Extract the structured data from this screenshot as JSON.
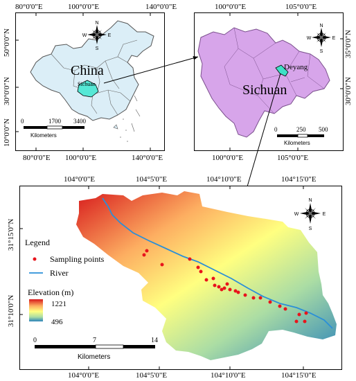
{
  "china_panel": {
    "top_ticks": [
      "80°0'0\"E",
      "100°0'0\"E",
      "140°0'0\"E"
    ],
    "bottom_ticks": [
      "80°0'0\"E",
      "100°0'0\"E",
      "140°0'0\"E"
    ],
    "left_ticks": [
      "50°0'0\"N",
      "30°0'0\"N",
      "10°0'0\"N"
    ],
    "country_label": "China",
    "province_label": "Sichuan",
    "scale_numbers": [
      "0",
      "1700",
      "3400"
    ],
    "scale_unit": "Kilometers",
    "colors": {
      "land": "#dbeef7",
      "highlight": "#56e8d6",
      "border": "#555555"
    }
  },
  "sichuan_panel": {
    "top_ticks": [
      "100°0'0\"E",
      "105°0'0\"E"
    ],
    "bottom_ticks": [
      "100°0'0\"E",
      "105°0'0\"E"
    ],
    "right_ticks": [
      "35°0'0\"N",
      "30°0'0\"N"
    ],
    "province_label": "Sichuan",
    "city_label": "Deyang",
    "scale_numbers": [
      "0",
      "250",
      "500"
    ],
    "scale_unit": "Kilometers",
    "colors": {
      "land": "#d7a5ea",
      "highlight": "#3ee0c6"
    }
  },
  "study_panel": {
    "top_ticks": [
      "104°0'0\"E",
      "104°5'0\"E",
      "104°10'0\"E",
      "104°15'0\"E"
    ],
    "bottom_ticks": [
      "104°0'0\"E",
      "104°5'0\"E",
      "104°10'0\"E",
      "104°15'0\"E"
    ],
    "left_ticks": [
      "31°15'0\"N",
      "31°10'0\"N"
    ],
    "legend_title": "Legend",
    "legend_points": "Sampling points",
    "legend_river": "River",
    "elevation_title": "Elevation (m)",
    "elevation_max": "1221",
    "elevation_min": "496",
    "scale_numbers": [
      "0",
      "7",
      "14"
    ],
    "scale_unit": "Kilometers",
    "colors": {
      "point": "#e8141c",
      "river": "#2a8fd8",
      "high": "#d7191c",
      "mid": "#ffff80",
      "low": "#2b83ba"
    }
  },
  "compass": {
    "n": "N",
    "s": "S",
    "e": "E",
    "w": "W"
  }
}
